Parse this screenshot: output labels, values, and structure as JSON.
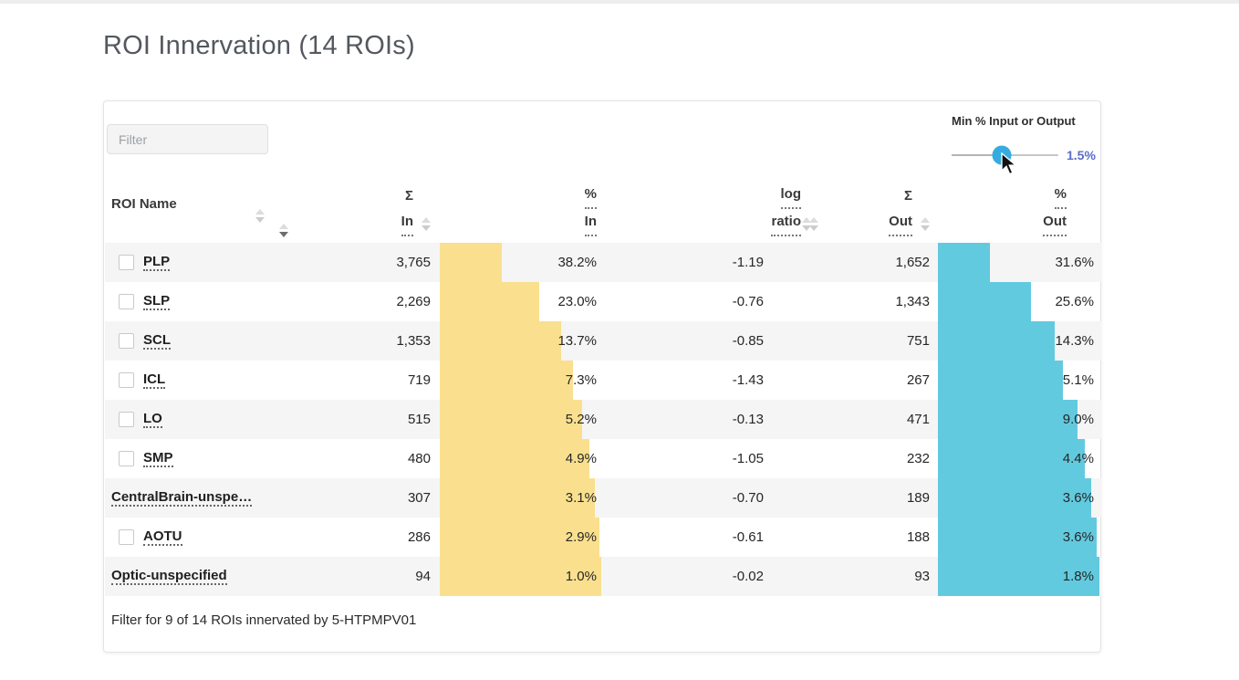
{
  "title": "ROI Innervation (14 ROIs)",
  "filter": {
    "placeholder": "Filter"
  },
  "slider": {
    "label": "Min % Input or Output",
    "value_label": "1.5%",
    "position_pct": 47
  },
  "table": {
    "headers": {
      "roi_name": "ROI Name",
      "sum_in_top": "Σ",
      "sum_in_bottom": "In",
      "pct_in_top": "%",
      "pct_in_bottom": "In",
      "log_ratio_top": "log",
      "log_ratio_bottom": "ratio",
      "sum_out_top": "Σ",
      "sum_out_bottom": "Out",
      "pct_out_top": "%",
      "pct_out_bottom": "Out"
    },
    "rows": [
      {
        "name": "PLP",
        "has_checkbox": true,
        "sum_in": "3,765",
        "pct_in": "38.2%",
        "log_ratio": "-1.19",
        "sum_out": "1,652",
        "pct_out": "31.6%",
        "cum_in_pct": 38.2,
        "cum_out_pct": 31.6
      },
      {
        "name": "SLP",
        "has_checkbox": true,
        "sum_in": "2,269",
        "pct_in": "23.0%",
        "log_ratio": "-0.76",
        "sum_out": "1,343",
        "pct_out": "25.6%",
        "cum_in_pct": 61.2,
        "cum_out_pct": 57.2
      },
      {
        "name": "SCL",
        "has_checkbox": true,
        "sum_in": "1,353",
        "pct_in": "13.7%",
        "log_ratio": "-0.85",
        "sum_out": "751",
        "pct_out": "14.3%",
        "cum_in_pct": 74.9,
        "cum_out_pct": 71.5
      },
      {
        "name": "ICL",
        "has_checkbox": true,
        "sum_in": "719",
        "pct_in": "7.3%",
        "log_ratio": "-1.43",
        "sum_out": "267",
        "pct_out": "5.1%",
        "cum_in_pct": 82.2,
        "cum_out_pct": 76.6
      },
      {
        "name": "LO",
        "has_checkbox": true,
        "sum_in": "515",
        "pct_in": "5.2%",
        "log_ratio": "-0.13",
        "sum_out": "471",
        "pct_out": "9.0%",
        "cum_in_pct": 87.4,
        "cum_out_pct": 85.6
      },
      {
        "name": "SMP",
        "has_checkbox": true,
        "sum_in": "480",
        "pct_in": "4.9%",
        "log_ratio": "-1.05",
        "sum_out": "232",
        "pct_out": "4.4%",
        "cum_in_pct": 92.3,
        "cum_out_pct": 90.0
      },
      {
        "name": "CentralBrain-unspe…",
        "has_checkbox": false,
        "sum_in": "307",
        "pct_in": "3.1%",
        "log_ratio": "-0.70",
        "sum_out": "189",
        "pct_out": "3.6%",
        "cum_in_pct": 95.4,
        "cum_out_pct": 93.6
      },
      {
        "name": "AOTU",
        "has_checkbox": true,
        "sum_in": "286",
        "pct_in": "2.9%",
        "log_ratio": "-0.61",
        "sum_out": "188",
        "pct_out": "3.6%",
        "cum_in_pct": 98.3,
        "cum_out_pct": 97.2
      },
      {
        "name": "Optic-unspecified",
        "has_checkbox": false,
        "sum_in": "94",
        "pct_in": "1.0%",
        "log_ratio": "-0.02",
        "sum_out": "93",
        "pct_out": "1.8%",
        "cum_in_pct": 99.3,
        "cum_out_pct": 99.0
      }
    ]
  },
  "footer": "Filter for 9 of 14 ROIs innervated by 5-HTPMPV01",
  "colors": {
    "bar_in": "#fae08e",
    "bar_out": "#62cadf",
    "slider_knob": "#35ace0",
    "slider_value_text": "#5a6dc8"
  }
}
